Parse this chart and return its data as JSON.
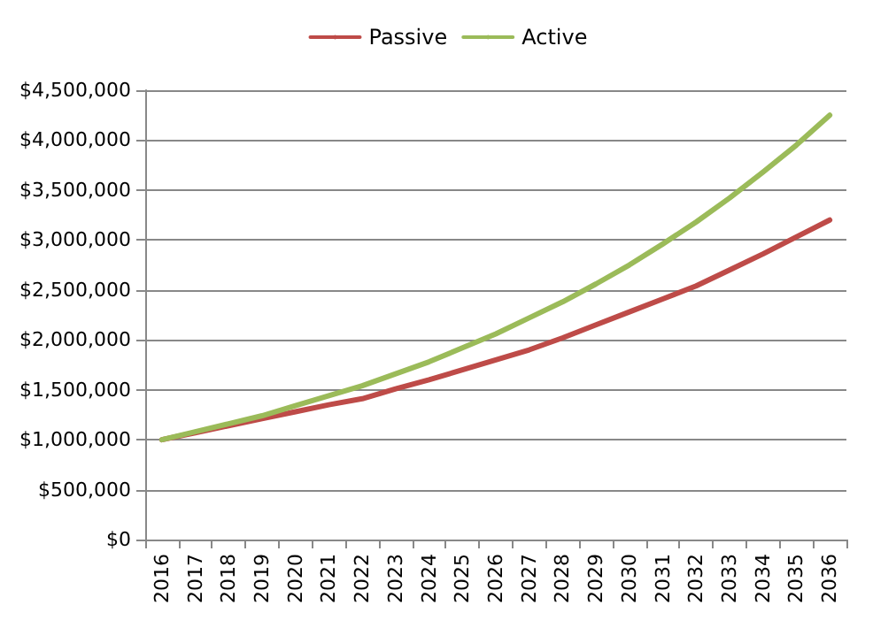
{
  "chart_data": {
    "type": "line",
    "categories": [
      "2016",
      "2017",
      "2018",
      "2019",
      "2020",
      "2021",
      "2022",
      "2023",
      "2024",
      "2025",
      "2026",
      "2027",
      "2028",
      "2029",
      "2030",
      "2031",
      "2032",
      "2033",
      "2034",
      "2035",
      "2036"
    ],
    "series": [
      {
        "name": "Passive",
        "color": "#be4b48",
        "values": [
          1000000,
          1070000,
          1140000,
          1210000,
          1280000,
          1350000,
          1410000,
          1510000,
          1600000,
          1700000,
          1800000,
          1900000,
          2020000,
          2150000,
          2280000,
          2410000,
          2540000,
          2700000,
          2860000,
          3030000,
          3200000
        ]
      },
      {
        "name": "Active",
        "color": "#9bbb59",
        "values": [
          1000000,
          1080000,
          1160000,
          1240000,
          1340000,
          1440000,
          1540000,
          1660000,
          1780000,
          1920000,
          2060000,
          2220000,
          2380000,
          2560000,
          2750000,
          2960000,
          3180000,
          3420000,
          3680000,
          3950000,
          4250000
        ]
      }
    ],
    "ylim": [
      0,
      4500000
    ],
    "yticks": [
      {
        "value": 0,
        "label": "$0"
      },
      {
        "value": 500000,
        "label": "$500,000"
      },
      {
        "value": 1000000,
        "label": "$1,000,000"
      },
      {
        "value": 1500000,
        "label": "$1,500,000"
      },
      {
        "value": 2000000,
        "label": "$2,000,000"
      },
      {
        "value": 2500000,
        "label": "$2,500,000"
      },
      {
        "value": 3000000,
        "label": "$3,000,000"
      },
      {
        "value": 3500000,
        "label": "$3,500,000"
      },
      {
        "value": 4000000,
        "label": "$4,000,000"
      },
      {
        "value": 4500000,
        "label": "$4,500,000"
      }
    ],
    "grid": "y",
    "legend": "top",
    "marker": "none",
    "line_style": "solid"
  }
}
